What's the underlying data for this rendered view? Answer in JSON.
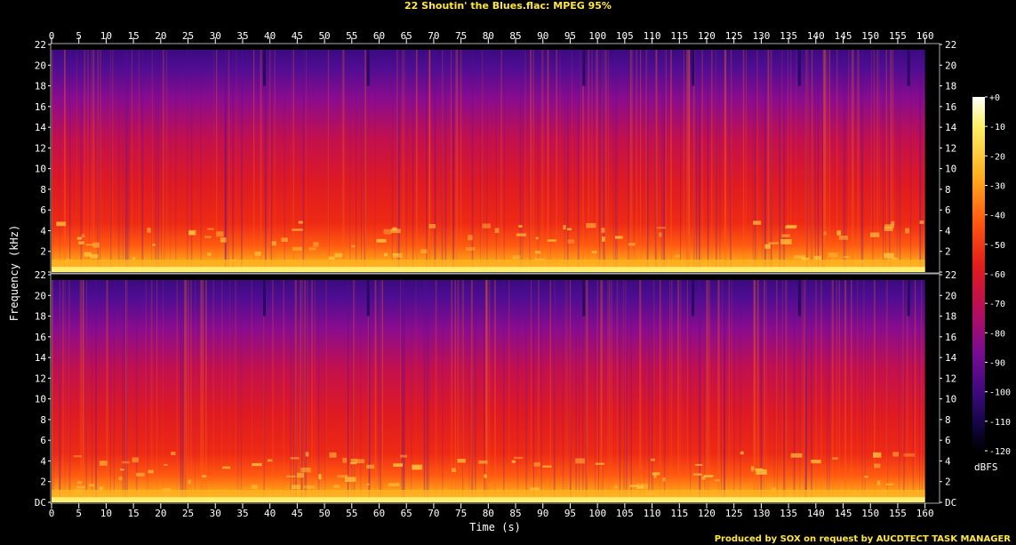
{
  "window": {
    "title": "22 Shoutin' the Blues.flac: MPEG 95%",
    "footer": "Produced by SOX on request by AUCDTECT TASK MANAGER"
  },
  "chart_data": {
    "type": "heatmap",
    "title": "22 Shoutin' the Blues.flac: MPEG 95%",
    "xlabel": "Time (s)",
    "ylabel": "Frequency (kHz)",
    "xlim": [
      0,
      162.5
    ],
    "ylim": [
      0,
      22
    ],
    "x_ticks": [
      0,
      5,
      10,
      15,
      20,
      25,
      30,
      35,
      40,
      45,
      50,
      55,
      60,
      65,
      70,
      75,
      80,
      85,
      90,
      95,
      100,
      105,
      110,
      115,
      120,
      125,
      130,
      135,
      140,
      145,
      150,
      155,
      160
    ],
    "y_ticks": [
      "DC",
      "2",
      "4",
      "6",
      "8",
      "10",
      "12",
      "14",
      "16",
      "18",
      "20",
      "22"
    ],
    "channels": 2,
    "bandwidth_cutoff_khz": 21.5,
    "audio_end_s": 160,
    "colorbar": {
      "label": "dBFS",
      "ticks": [
        "+0",
        "-10",
        "-20",
        "-30",
        "-40",
        "-50",
        "-60",
        "-70",
        "-80",
        "-90",
        "-100",
        "-110",
        "-120"
      ],
      "range": [
        -120,
        0
      ]
    },
    "quiet_dropouts_s": [
      39,
      58,
      97.5,
      117.5,
      137,
      157
    ]
  },
  "colors": {
    "background": "#000000",
    "title_text": "#ffe640",
    "axis_text": "#ffffff",
    "palette": [
      "#000000",
      "#0f0530",
      "#2e0a6e",
      "#5a0e96",
      "#8c0c8c",
      "#c8104a",
      "#e81c1c",
      "#ff4a10",
      "#ff8c10",
      "#ffc820",
      "#fff06a",
      "#ffffff"
    ]
  }
}
